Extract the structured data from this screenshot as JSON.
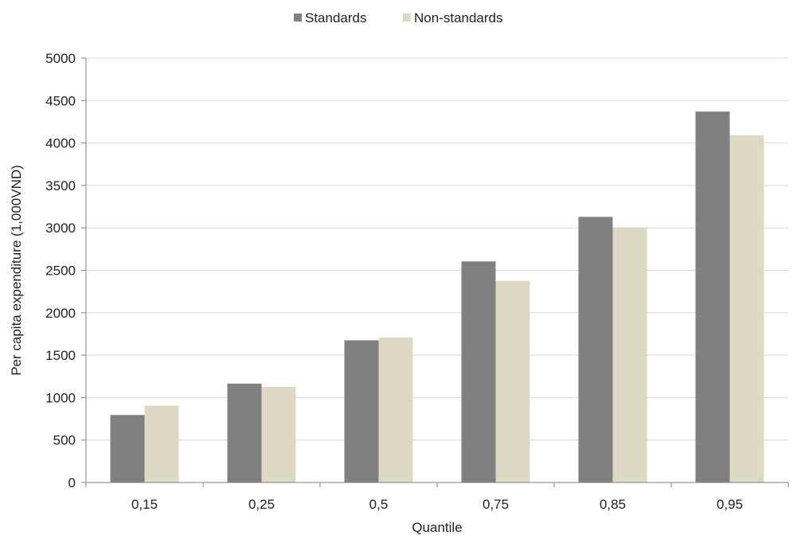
{
  "chart_data": {
    "type": "bar",
    "title": "",
    "xlabel": "Quantile",
    "ylabel": "Per capita expenditure (1,000VND)",
    "categories": [
      "0,15",
      "0,25",
      "0,5",
      "0,75",
      "0,85",
      "0,95"
    ],
    "series": [
      {
        "name": "Standards",
        "color": "#808080",
        "values": [
          795,
          1165,
          1675,
          2605,
          3130,
          4370
        ]
      },
      {
        "name": "Non-standards",
        "color": "#DDD9C4",
        "values": [
          905,
          1125,
          1710,
          2375,
          3005,
          4090
        ]
      }
    ],
    "ylim": [
      0,
      5000
    ],
    "yticks": [
      0,
      500,
      1000,
      1500,
      2000,
      2500,
      3000,
      3500,
      4000,
      4500,
      5000
    ],
    "grid": true,
    "legend_position": "top-center"
  }
}
